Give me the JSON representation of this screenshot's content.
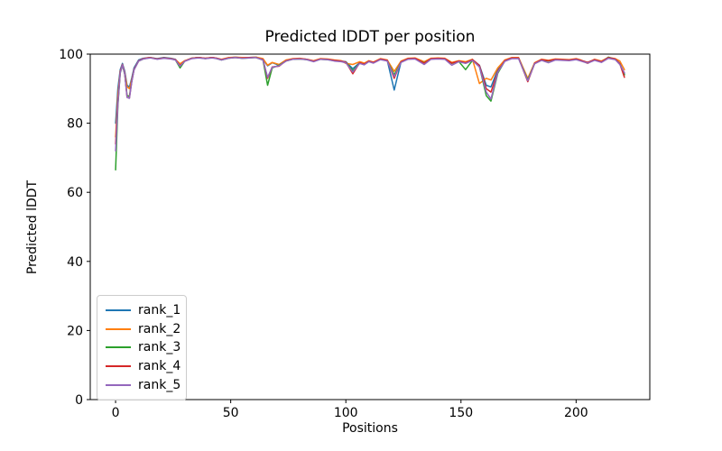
{
  "figure": {
    "background": "#ffffff",
    "spine_color": "#000000",
    "legend_border_color": "#cccccc"
  },
  "chart_data": {
    "type": "line",
    "title": "Predicted lDDT per position",
    "xlabel": "Positions",
    "ylabel": "Predicted lDDT",
    "xlim": [
      -11,
      232
    ],
    "ylim": [
      0,
      100
    ],
    "xticks": [
      0,
      50,
      100,
      150,
      200
    ],
    "yticks": [
      0,
      20,
      40,
      60,
      80,
      100
    ],
    "grid": false,
    "legend_position": "lower left",
    "x": [
      0,
      1,
      2,
      3,
      4,
      5,
      6,
      7,
      8,
      10,
      12,
      15,
      18,
      21,
      24,
      26,
      28,
      30,
      33,
      36,
      39,
      42,
      44,
      46,
      49,
      52,
      55,
      58,
      61,
      64,
      66,
      68,
      71,
      74,
      77,
      80,
      83,
      86,
      89,
      92,
      95,
      98,
      100,
      103,
      106,
      108,
      110,
      112,
      115,
      118,
      121,
      124,
      127,
      130,
      134,
      137,
      140,
      143,
      146,
      149,
      152,
      155,
      158,
      161,
      163,
      166,
      169,
      172,
      175,
      179,
      182,
      185,
      188,
      191,
      194,
      197,
      200,
      202,
      205,
      208,
      211,
      214,
      217,
      219,
      221
    ],
    "series": [
      {
        "name": "rank_1",
        "color": "#1f77b4",
        "values": [
          80.0,
          90.0,
          95.5,
          97.3,
          95.0,
          91.0,
          90.5,
          93.0,
          96.0,
          98.3,
          98.8,
          99.0,
          98.7,
          99.0,
          98.8,
          98.5,
          96.8,
          98.0,
          98.8,
          99.0,
          98.8,
          99.0,
          98.8,
          98.4,
          98.9,
          99.1,
          98.9,
          99.0,
          99.1,
          98.5,
          96.6,
          97.5,
          96.8,
          98.2,
          98.6,
          98.7,
          98.5,
          98.0,
          98.6,
          98.5,
          98.2,
          98.0,
          97.8,
          95.8,
          97.5,
          97.2,
          98.0,
          97.6,
          98.6,
          98.2,
          89.6,
          97.8,
          98.7,
          98.8,
          97.6,
          98.7,
          98.8,
          98.7,
          97.4,
          98.0,
          97.6,
          98.4,
          96.8,
          91.0,
          90.5,
          95.5,
          98.2,
          98.9,
          98.9,
          92.2,
          97.4,
          98.4,
          98.1,
          98.5,
          98.4,
          98.3,
          98.6,
          98.2,
          97.6,
          98.4,
          97.8,
          99.0,
          98.6,
          97.3,
          94.2
        ]
      },
      {
        "name": "rank_2",
        "color": "#ff7f0e",
        "values": [
          76.0,
          88.0,
          95.0,
          97.0,
          94.5,
          90.5,
          90.0,
          92.5,
          95.5,
          98.0,
          98.7,
          99.0,
          98.6,
          98.9,
          98.7,
          98.4,
          97.2,
          98.1,
          98.8,
          99.0,
          98.8,
          99.0,
          98.8,
          98.5,
          99.0,
          99.1,
          99.0,
          99.0,
          99.1,
          98.7,
          96.8,
          97.6,
          97.0,
          98.3,
          98.7,
          98.8,
          98.5,
          98.1,
          98.7,
          98.6,
          98.3,
          98.1,
          97.3,
          97.0,
          97.8,
          97.4,
          98.1,
          97.7,
          98.7,
          98.3,
          95.0,
          98.0,
          98.8,
          98.9,
          97.8,
          98.8,
          98.9,
          98.8,
          97.6,
          98.1,
          97.8,
          98.5,
          91.5,
          93.0,
          92.5,
          96.0,
          98.3,
          99.0,
          99.0,
          93.0,
          97.5,
          98.5,
          98.2,
          98.6,
          98.5,
          98.4,
          98.7,
          98.3,
          97.3,
          98.5,
          98.0,
          99.0,
          98.7,
          98.0,
          95.5
        ]
      },
      {
        "name": "rank_3",
        "color": "#2ca02c",
        "values": [
          66.5,
          85.0,
          94.5,
          96.8,
          94.0,
          88.0,
          87.8,
          92.0,
          95.5,
          98.0,
          98.6,
          99.0,
          98.6,
          98.9,
          98.7,
          98.3,
          96.0,
          97.9,
          98.8,
          99.0,
          98.7,
          99.0,
          98.7,
          98.3,
          98.8,
          99.0,
          98.8,
          98.9,
          99.0,
          98.3,
          91.0,
          96.0,
          96.8,
          98.0,
          98.5,
          98.6,
          98.4,
          97.9,
          98.5,
          98.4,
          98.1,
          97.9,
          97.7,
          95.2,
          97.4,
          97.0,
          97.9,
          97.5,
          98.5,
          98.1,
          94.0,
          97.7,
          98.6,
          98.7,
          97.5,
          98.6,
          98.7,
          98.6,
          97.3,
          97.9,
          95.5,
          98.2,
          96.5,
          88.0,
          86.4,
          94.5,
          98.0,
          98.8,
          98.8,
          92.5,
          97.3,
          98.3,
          98.0,
          98.4,
          98.3,
          98.2,
          98.5,
          98.1,
          97.5,
          98.3,
          97.7,
          99.1,
          98.5,
          97.1,
          94.0
        ]
      },
      {
        "name": "rank_4",
        "color": "#d62728",
        "values": [
          74.0,
          86.0,
          94.8,
          97.0,
          94.3,
          87.5,
          87.3,
          92.0,
          95.6,
          98.1,
          98.7,
          99.0,
          98.6,
          98.9,
          98.7,
          98.4,
          96.6,
          98.0,
          98.8,
          99.0,
          98.8,
          99.0,
          98.8,
          98.4,
          98.9,
          99.0,
          98.9,
          99.0,
          99.0,
          98.4,
          93.0,
          96.3,
          96.5,
          98.1,
          98.6,
          98.7,
          98.5,
          98.0,
          98.6,
          98.5,
          98.2,
          98.0,
          97.7,
          94.3,
          97.5,
          97.1,
          98.0,
          97.6,
          98.6,
          98.2,
          93.0,
          97.8,
          98.7,
          98.8,
          97.4,
          98.7,
          98.8,
          98.7,
          97.4,
          98.0,
          97.5,
          98.4,
          96.7,
          90.0,
          89.0,
          95.0,
          98.1,
          98.9,
          98.9,
          92.0,
          97.4,
          98.4,
          98.1,
          98.5,
          98.4,
          98.3,
          98.6,
          98.2,
          97.6,
          98.4,
          97.8,
          99.0,
          98.6,
          97.2,
          93.3
        ]
      },
      {
        "name": "rank_5",
        "color": "#9467bd",
        "values": [
          72.0,
          85.5,
          94.6,
          96.9,
          94.2,
          87.5,
          87.2,
          91.8,
          95.4,
          98.0,
          98.6,
          98.9,
          98.5,
          98.8,
          98.6,
          98.3,
          96.5,
          97.9,
          98.7,
          98.9,
          98.7,
          98.9,
          98.7,
          98.3,
          98.8,
          99.0,
          98.8,
          98.9,
          99.0,
          98.3,
          93.3,
          96.2,
          96.6,
          98.0,
          98.5,
          98.6,
          98.4,
          97.8,
          98.5,
          98.4,
          98.0,
          97.8,
          97.5,
          94.8,
          97.3,
          96.9,
          97.8,
          97.4,
          98.4,
          98.0,
          93.5,
          97.6,
          98.5,
          98.6,
          97.0,
          98.5,
          98.6,
          98.5,
          96.8,
          97.8,
          97.3,
          98.2,
          96.3,
          89.0,
          87.0,
          94.8,
          97.9,
          98.7,
          98.7,
          92.3,
          97.2,
          98.2,
          97.5,
          98.3,
          98.2,
          98.1,
          98.4,
          98.0,
          97.4,
          98.2,
          97.6,
          98.8,
          98.4,
          97.0,
          94.6
        ]
      }
    ]
  }
}
